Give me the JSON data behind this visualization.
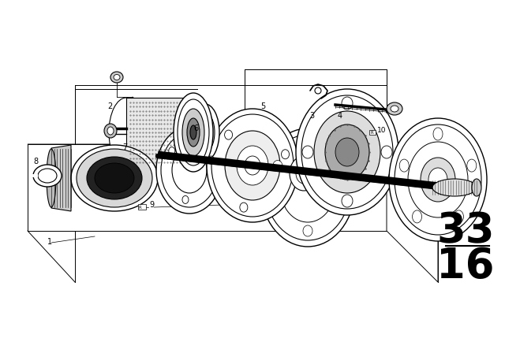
{
  "bg_color": "#ffffff",
  "line_color": "#000000",
  "fig_width": 6.4,
  "fig_height": 4.48,
  "dpi": 100,
  "page_number_top": "33",
  "page_number_bottom": "16",
  "page_number_fontsize": 38
}
